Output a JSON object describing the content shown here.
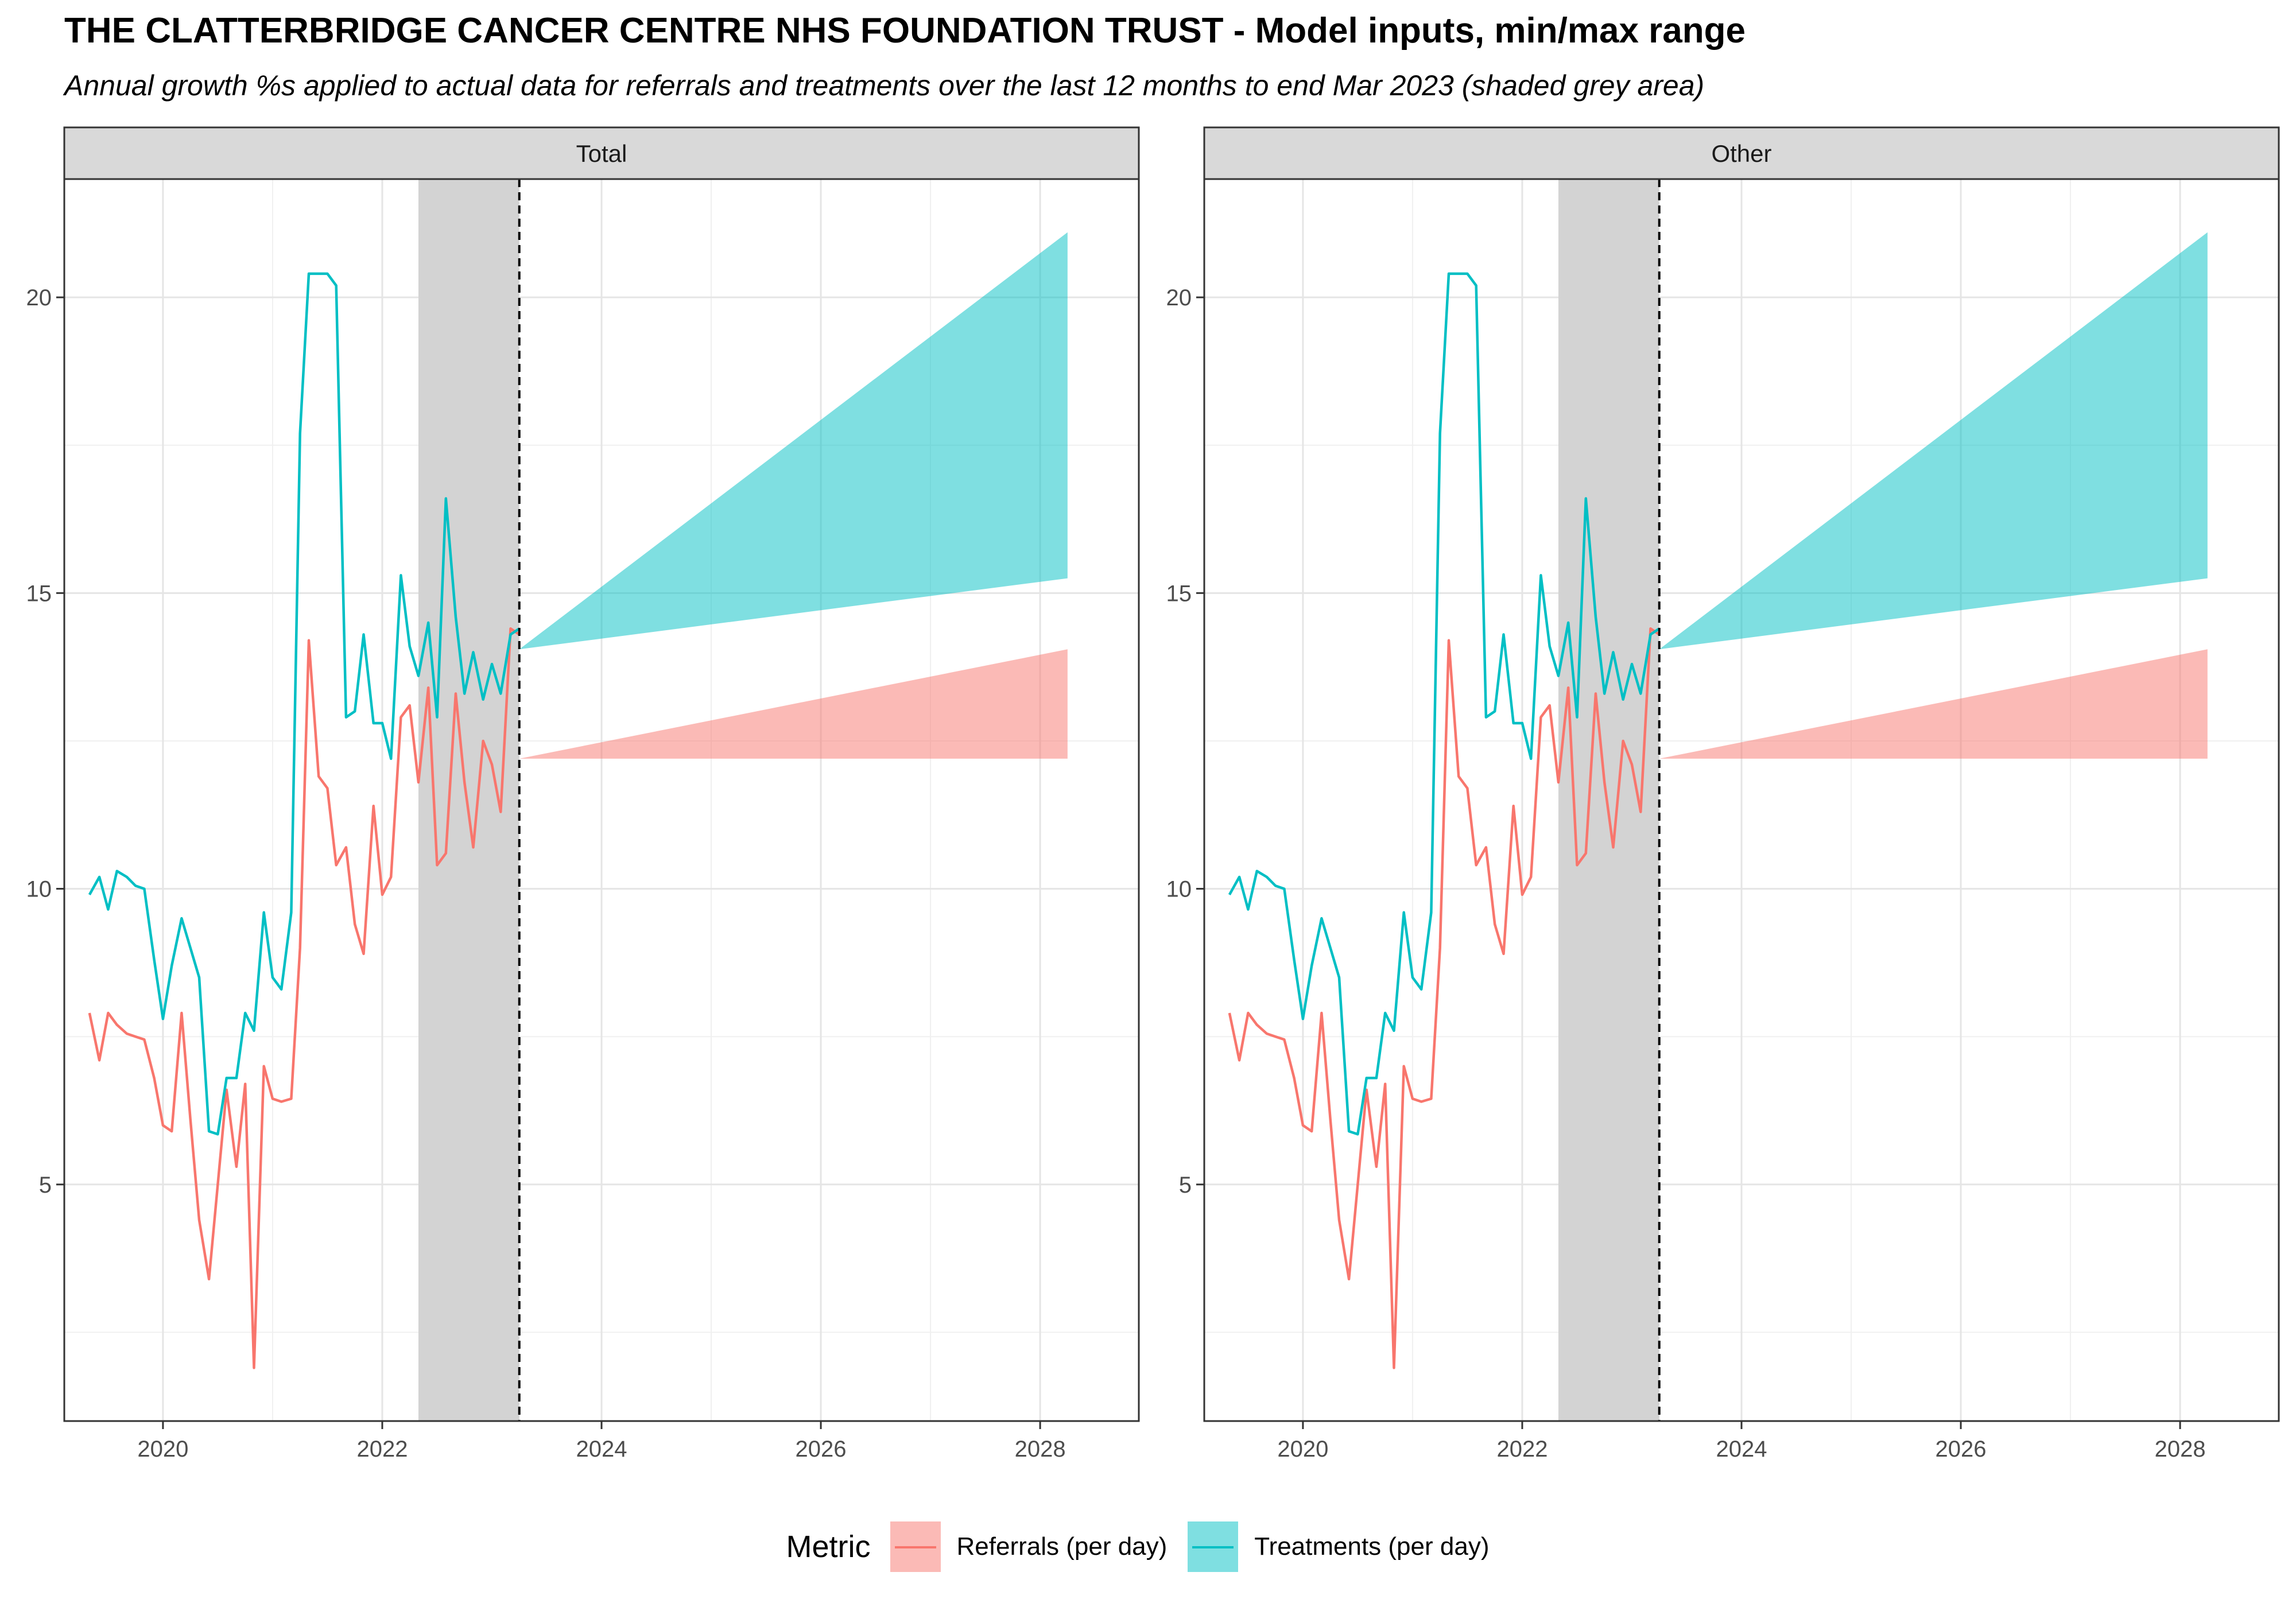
{
  "chart_data": {
    "type": "line",
    "title": "THE CLATTERBRIDGE CANCER CENTRE NHS FOUNDATION TRUST - Model inputs, min/max range",
    "subtitle": "Annual growth %s applied to actual data for referrals and treatments over the last 12 months to end Mar 2023 (shaded grey area)",
    "xlabel": "",
    "ylabel": "",
    "xlim": [
      2019.1,
      2028.9
    ],
    "ylim": [
      1,
      22
    ],
    "x_ticks": [
      2020,
      2022,
      2024,
      2026,
      2028
    ],
    "x_tick_labels": [
      "2020",
      "2022",
      "2024",
      "2026",
      "2028"
    ],
    "y_ticks": [
      5,
      10,
      15,
      20
    ],
    "y_tick_labels": [
      "5",
      "10",
      "15",
      "20"
    ],
    "grid": true,
    "shaded_period": [
      2022.33,
      2023.25
    ],
    "vline_x": 2023.25,
    "legend": {
      "title": "Metric",
      "placement": "bottom",
      "entries": [
        {
          "label": "Referrals (per day)",
          "color": "#F8766D",
          "fill": "#F8766D"
        },
        {
          "label": "Treatments (per day)",
          "color": "#00BFC4",
          "fill": "#00BFC4"
        }
      ]
    },
    "x": [
      2019.33,
      2019.42,
      2019.5,
      2019.58,
      2019.67,
      2019.75,
      2019.83,
      2019.92,
      2020.0,
      2020.08,
      2020.17,
      2020.25,
      2020.33,
      2020.42,
      2020.5,
      2020.58,
      2020.67,
      2020.75,
      2020.83,
      2020.92,
      2021.0,
      2021.08,
      2021.17,
      2021.25,
      2021.33,
      2021.42,
      2021.5,
      2021.58,
      2021.67,
      2021.75,
      2021.83,
      2021.92,
      2022.0,
      2022.08,
      2022.17,
      2022.25,
      2022.33,
      2022.42,
      2022.5,
      2022.58,
      2022.67,
      2022.75,
      2022.83,
      2022.92,
      2023.0,
      2023.08,
      2023.17,
      2023.25
    ],
    "series": [
      {
        "name": "Referrals (per day)",
        "color": "#F8766D",
        "values": [
          7.9,
          7.1,
          7.9,
          7.7,
          7.55,
          7.5,
          7.45,
          6.8,
          6.0,
          5.9,
          7.9,
          6.1,
          4.4,
          3.4,
          5.0,
          6.6,
          5.3,
          6.7,
          1.9,
          7.0,
          6.45,
          6.4,
          6.45,
          9.0,
          14.2,
          11.9,
          11.7,
          10.4,
          10.7,
          9.4,
          8.9,
          11.4,
          9.9,
          10.2,
          12.9,
          13.1,
          11.8,
          13.4,
          10.4,
          10.6,
          13.3,
          11.8,
          10.7,
          12.5,
          12.1,
          11.3,
          14.4,
          14.3
        ]
      },
      {
        "name": "Treatments (per day)",
        "color": "#00BFC4",
        "values": [
          9.9,
          10.2,
          9.65,
          10.3,
          10.2,
          10.05,
          10.0,
          8.8,
          7.8,
          8.7,
          9.5,
          9.0,
          8.5,
          5.9,
          5.85,
          6.8,
          6.8,
          7.9,
          7.6,
          9.6,
          8.5,
          8.3,
          9.6,
          17.7,
          20.4,
          20.4,
          20.4,
          20.2,
          12.9,
          13.0,
          14.3,
          12.8,
          12.8,
          12.2,
          15.3,
          14.1,
          13.6,
          14.5,
          12.9,
          16.6,
          14.6,
          13.3,
          14.0,
          13.2,
          13.8,
          13.3,
          14.3,
          14.4
        ]
      }
    ],
    "ranges": [
      {
        "name": "Referrals (per day)",
        "color": "#F8766D",
        "x": [
          2023.25,
          2028.25
        ],
        "base": 12.2,
        "min_end": 12.2,
        "max_end": 14.05
      },
      {
        "name": "Treatments (per day)",
        "color": "#00BFC4",
        "x": [
          2023.25,
          2028.25
        ],
        "base": 14.05,
        "min_end": 15.25,
        "max_end": 21.1
      }
    ],
    "facets": [
      "Total",
      "Other"
    ]
  }
}
